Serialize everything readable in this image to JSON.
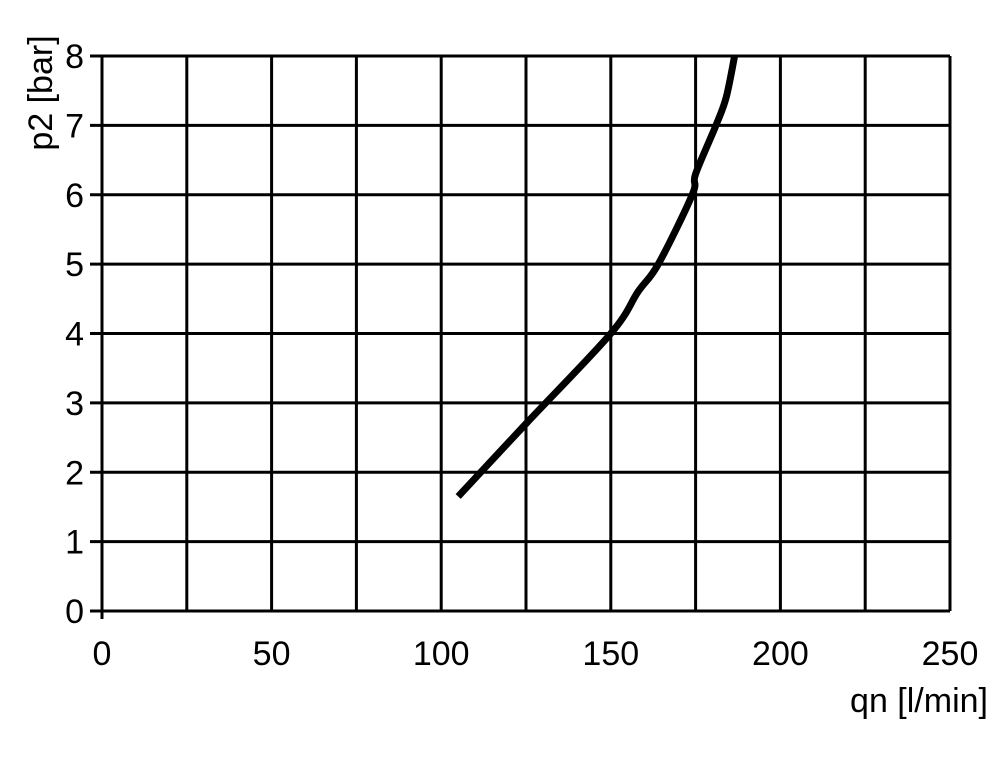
{
  "chart_data": {
    "type": "line",
    "title": "",
    "xlabel": "qn [l/min]",
    "ylabel": "p2 [bar]",
    "xlim": [
      0,
      250
    ],
    "ylim": [
      0,
      8
    ],
    "x_ticks": [
      0,
      50,
      100,
      150,
      200,
      250
    ],
    "x_gridlines": [
      0,
      25,
      50,
      75,
      100,
      125,
      150,
      175,
      200,
      225,
      250
    ],
    "y_ticks": [
      0,
      1,
      2,
      3,
      4,
      5,
      6,
      7,
      8
    ],
    "grid": true,
    "line_color": "#000000",
    "series": [
      {
        "x": [
          105,
          125,
          150,
          158,
          164,
          174,
          175,
          181,
          184,
          186.5
        ],
        "y": [
          1.65,
          2.7,
          4.0,
          4.6,
          5.0,
          6.0,
          6.3,
          7.0,
          7.4,
          8.0
        ]
      }
    ]
  }
}
